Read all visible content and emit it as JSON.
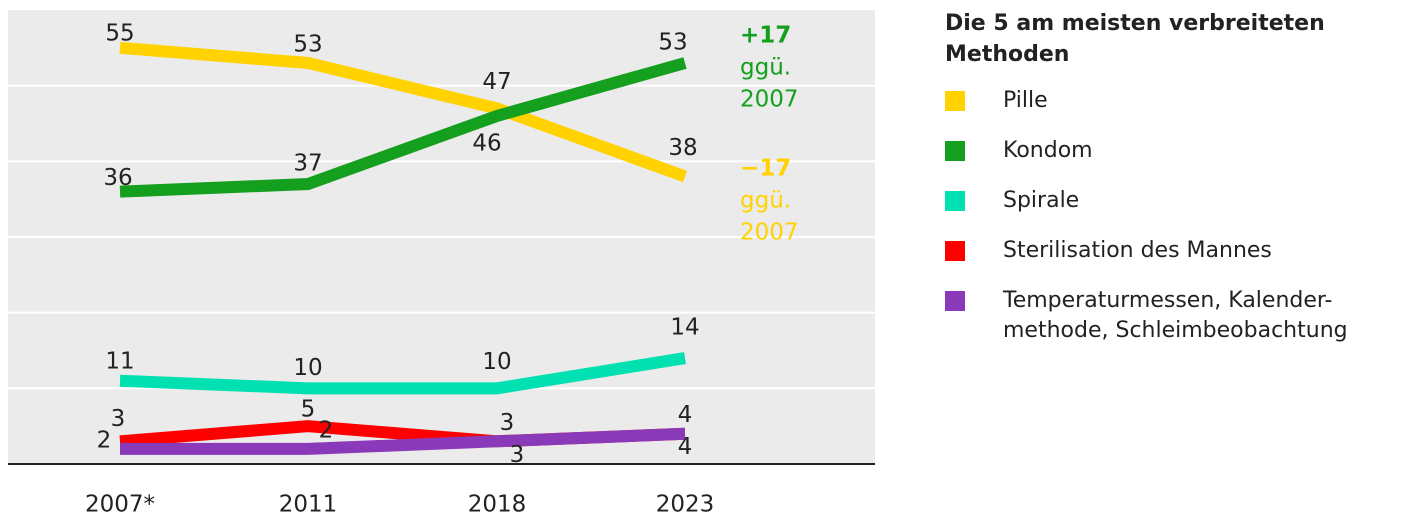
{
  "chart_data": {
    "type": "line",
    "categories": [
      "2007*",
      "2011",
      "2018",
      "2023"
    ],
    "series": [
      {
        "name": "Pille",
        "color": "#ffd200",
        "values": [
          55,
          53,
          47,
          38
        ]
      },
      {
        "name": "Kondom",
        "color": "#14a01e",
        "values": [
          36,
          37,
          46,
          53
        ]
      },
      {
        "name": "Spirale",
        "color": "#00e0b0",
        "values": [
          11,
          10,
          10,
          14
        ]
      },
      {
        "name": "Sterilisation des Mannes",
        "color": "#ff0000",
        "values": [
          3,
          5,
          3,
          4
        ]
      },
      {
        "name": "Temperaturmessen, Kalender-\nmethode, Schleimbeobachtung",
        "color": "#8a3ab9",
        "values": [
          2,
          2,
          3,
          4
        ]
      }
    ],
    "ylim": [
      0,
      60
    ],
    "yticks": [
      10,
      20,
      30,
      40,
      50
    ],
    "grid": true,
    "legend_title": "Die 5 am meisten verbreiteten Methoden",
    "annotations": [
      {
        "lines": [
          "+17",
          "ggü.",
          "2007"
        ],
        "color": "#14a01e"
      },
      {
        "lines": [
          "−17",
          "ggü.",
          "2007"
        ],
        "color": "#ffd200"
      }
    ]
  }
}
